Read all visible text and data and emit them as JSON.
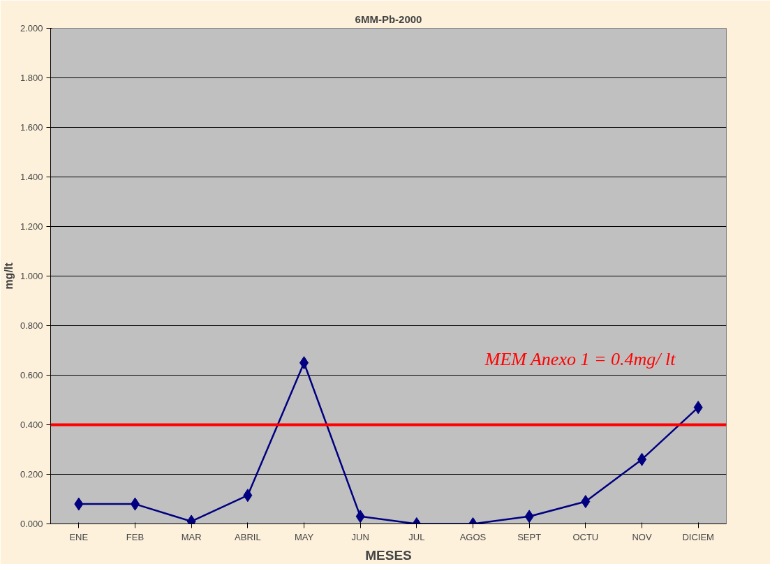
{
  "chart_data": {
    "type": "line",
    "title": "6MM-Pb-2000",
    "xlabel": "MESES",
    "ylabel": "mg/lt",
    "categories": [
      "ENE",
      "FEB",
      "MAR",
      "ABRIL",
      "MAY",
      "JUN",
      "JUL",
      "AGOS",
      "SEPT",
      "OCTU",
      "NOV",
      "DICIEM"
    ],
    "series": [
      {
        "color": "#000080",
        "values": [
          0.08,
          0.08,
          0.01,
          0.115,
          0.65,
          0.03,
          0.0,
          0.0,
          0.03,
          0.09,
          0.26,
          0.47
        ]
      }
    ],
    "ylim": [
      0,
      2
    ],
    "yticks": [
      {
        "value": 0,
        "label": "0.000"
      },
      {
        "value": 0.2,
        "label": "0.200"
      },
      {
        "value": 0.4,
        "label": "0.400"
      },
      {
        "value": 0.6,
        "label": "0.600"
      },
      {
        "value": 0.8,
        "label": "0.800"
      },
      {
        "value": 1.0,
        "label": "1.000"
      },
      {
        "value": 1.2,
        "label": "1.200"
      },
      {
        "value": 1.4,
        "label": "1.400"
      },
      {
        "value": 1.6,
        "label": "1.600"
      },
      {
        "value": 1.8,
        "label": "1.800"
      },
      {
        "value": 2.0,
        "label": "2.000"
      }
    ],
    "ref_lines": [
      {
        "axis": "y",
        "value": 0.4,
        "label": "MEM Anexo 1 = 0.4mg/ lt",
        "color": "#ff0000"
      }
    ],
    "grid": "y",
    "marker": "diamond",
    "line_style": "solid"
  }
}
